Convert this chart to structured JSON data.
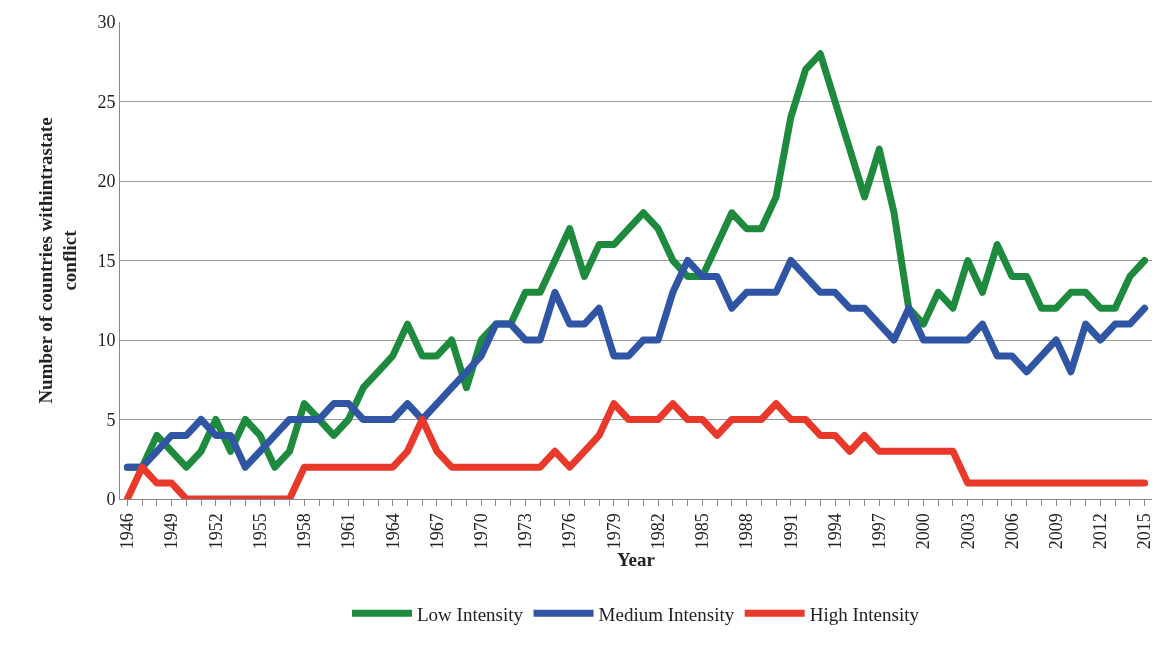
{
  "chart_data": {
    "type": "line",
    "xlabel": "Year",
    "ylabel": "Number of countries withintrastate conflict",
    "x": [
      1946,
      1947,
      1948,
      1949,
      1950,
      1951,
      1952,
      1953,
      1954,
      1955,
      1956,
      1957,
      1958,
      1959,
      1960,
      1961,
      1962,
      1963,
      1964,
      1965,
      1966,
      1967,
      1968,
      1969,
      1970,
      1971,
      1972,
      1973,
      1974,
      1975,
      1976,
      1977,
      1978,
      1979,
      1980,
      1981,
      1982,
      1983,
      1984,
      1985,
      1986,
      1987,
      1988,
      1989,
      1990,
      1991,
      1992,
      1993,
      1994,
      1995,
      1996,
      1997,
      1998,
      1999,
      2000,
      2001,
      2002,
      2003,
      2004,
      2005,
      2006,
      2007,
      2008,
      2009,
      2010,
      2011,
      2012,
      2013,
      2014,
      2015
    ],
    "series": [
      {
        "name": "Low Intensity",
        "color": "#1e8a3e",
        "values": [
          2,
          2,
          4,
          3,
          2,
          3,
          5,
          3,
          5,
          4,
          2,
          3,
          6,
          5,
          4,
          5,
          7,
          8,
          9,
          11,
          9,
          9,
          10,
          7,
          10,
          11,
          11,
          13,
          13,
          15,
          17,
          14,
          16,
          16,
          17,
          18,
          17,
          15,
          14,
          14,
          16,
          18,
          17,
          17,
          19,
          24,
          27,
          28,
          25,
          22,
          19,
          22,
          18,
          12,
          11,
          13,
          12,
          15,
          13,
          16,
          14,
          14,
          12,
          12,
          13,
          13,
          12,
          12,
          14,
          15
        ]
      },
      {
        "name": "Medium Intensity",
        "color": "#2f55a4",
        "values": [
          2,
          2,
          3,
          4,
          4,
          5,
          4,
          4,
          2,
          3,
          4,
          5,
          5,
          5,
          6,
          6,
          5,
          5,
          5,
          6,
          5,
          6,
          7,
          8,
          9,
          11,
          11,
          10,
          10,
          13,
          11,
          11,
          12,
          9,
          9,
          10,
          10,
          13,
          15,
          14,
          14,
          12,
          13,
          13,
          13,
          15,
          14,
          13,
          13,
          12,
          12,
          11,
          10,
          12,
          10,
          10,
          10,
          10,
          11,
          9,
          9,
          8,
          9,
          10,
          8,
          11,
          10,
          11,
          11,
          12
        ]
      },
      {
        "name": "High Intensity",
        "color": "#e8392b",
        "values": [
          0,
          2,
          1,
          1,
          0,
          0,
          0,
          0,
          0,
          0,
          0,
          0,
          2,
          2,
          2,
          2,
          2,
          2,
          2,
          3,
          5,
          3,
          2,
          2,
          2,
          2,
          2,
          2,
          2,
          3,
          2,
          3,
          4,
          6,
          5,
          5,
          5,
          6,
          5,
          5,
          4,
          5,
          5,
          5,
          6,
          5,
          5,
          4,
          4,
          3,
          4,
          3,
          3,
          3,
          3,
          3,
          3,
          1,
          1,
          1,
          1,
          1,
          1,
          1,
          1,
          1,
          1,
          1,
          1,
          1
        ]
      }
    ],
    "xlim": [
      1945.5,
      2015.5
    ],
    "xticks": [
      1946,
      1949,
      1952,
      1955,
      1958,
      1961,
      1964,
      1967,
      1970,
      1973,
      1976,
      1979,
      1982,
      1985,
      1988,
      1991,
      1994,
      1997,
      2000,
      2003,
      2006,
      2009,
      2012,
      2015
    ],
    "ylim": [
      0,
      30
    ],
    "yticks": [
      0,
      5,
      10,
      15,
      20,
      25,
      30
    ],
    "grid": "y",
    "legend": "bottom",
    "marker": "none",
    "line_style": "solid"
  }
}
